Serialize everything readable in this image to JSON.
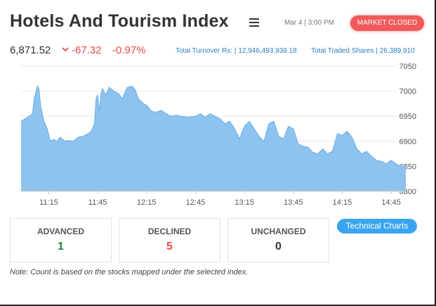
{
  "header": {
    "title": "Hotels And Tourism Index",
    "datetime": "Mar 4 | 3:00 PM",
    "market_status": "MARKET CLOSED"
  },
  "summary": {
    "index_value": "6,871.52",
    "change_abs": "-67.32",
    "change_pct": "-0.97%",
    "turnover_label": "Total Turnover Rs: |",
    "turnover_value": "12,946,493,939.18",
    "shares_label": "Total Traded Shares |",
    "shares_value": "26,389,910",
    "change_color": "#e84a4a",
    "link_color": "#2a7fc0"
  },
  "chart_data": {
    "type": "area",
    "ylim": [
      6800,
      7050
    ],
    "yticks": [
      "7050",
      "7000",
      "6950",
      "6900",
      "6850",
      "6800"
    ],
    "xticks": [
      "11:15",
      "11:45",
      "12:15",
      "12:45",
      "13:15",
      "13:45",
      "14:15",
      "14:45"
    ],
    "x": [
      "10:58",
      "11:00",
      "11:03",
      "11:05",
      "11:06",
      "11:08",
      "11:09",
      "11:10",
      "11:12",
      "11:14",
      "11:16",
      "11:18",
      "11:20",
      "11:22",
      "11:25",
      "11:27",
      "11:30",
      "11:33",
      "11:36",
      "11:39",
      "11:41",
      "11:43",
      "11:44",
      "11:45",
      "11:46",
      "11:47",
      "11:48",
      "11:50",
      "11:52",
      "11:55",
      "11:58",
      "12:00",
      "12:03",
      "12:06",
      "12:08",
      "12:10",
      "12:13",
      "12:15",
      "12:18",
      "12:21",
      "12:24",
      "12:27",
      "12:30",
      "12:33",
      "12:36",
      "12:40",
      "12:45",
      "12:48",
      "12:51",
      "12:54",
      "12:57",
      "13:00",
      "13:03",
      "13:06",
      "13:09",
      "13:12",
      "13:15",
      "13:18",
      "13:21",
      "13:24",
      "13:27",
      "13:30",
      "13:33",
      "13:36",
      "13:39",
      "13:42",
      "13:45",
      "13:48",
      "13:51",
      "13:54",
      "13:57",
      "14:00",
      "14:03",
      "14:06",
      "14:09",
      "14:12",
      "14:15",
      "14:18",
      "14:21",
      "14:24",
      "14:27",
      "14:30",
      "14:33",
      "14:36",
      "14:39",
      "14:42",
      "14:45",
      "14:48",
      "14:51",
      "14:54"
    ],
    "values": [
      6940,
      6944,
      6950,
      6955,
      6985,
      7010,
      7005,
      6970,
      6940,
      6925,
      6900,
      6904,
      6900,
      6908,
      6900,
      6902,
      6900,
      6908,
      6910,
      6915,
      6920,
      6935,
      6985,
      6992,
      6960,
      6995,
      7005,
      6992,
      7008,
      7000,
      6995,
      6985,
      7007,
      7010,
      7003,
      6985,
      6975,
      6972,
      6960,
      6958,
      6962,
      6955,
      6950,
      6952,
      6950,
      6948,
      6950,
      6955,
      6948,
      6955,
      6950,
      6945,
      6935,
      6940,
      6925,
      6905,
      6930,
      6940,
      6925,
      6910,
      6900,
      6935,
      6940,
      6910,
      6905,
      6930,
      6925,
      6895,
      6890,
      6888,
      6878,
      6875,
      6885,
      6875,
      6880,
      6915,
      6912,
      6920,
      6908,
      6885,
      6875,
      6880,
      6870,
      6862,
      6860,
      6855,
      6862,
      6855,
      6850,
      6852
    ],
    "fill_color": "#8ec3ef",
    "line_color": "#6aaee6",
    "grid": true
  },
  "stats": [
    {
      "label": "ADVANCED",
      "count": "1",
      "color": "#1a8a3a"
    },
    {
      "label": "DECLINED",
      "count": "5",
      "color": "#e84a4a"
    },
    {
      "label": "UNCHANGED",
      "count": "0",
      "color": "#333333"
    }
  ],
  "actions": {
    "technical_charts": "Technical Charts"
  },
  "note": "Note: Count is based on the stocks mapped under the selected index.",
  "icons": {
    "menu": "hamburger-icon",
    "change": "chevron-down-icon"
  }
}
